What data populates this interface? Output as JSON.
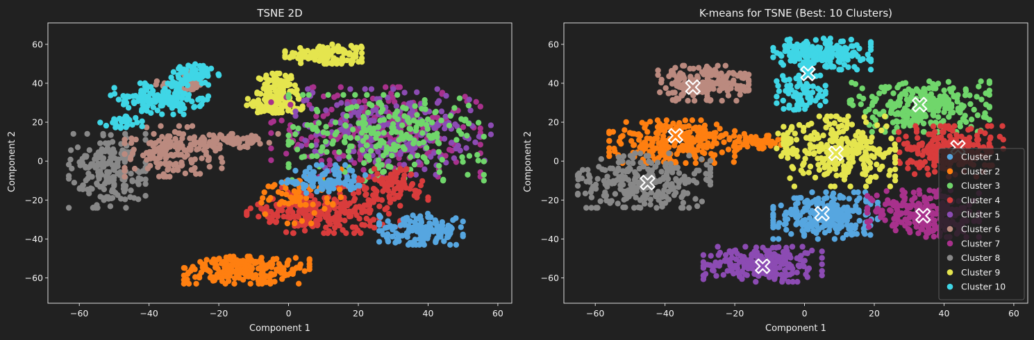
{
  "palette": {
    "figure_bg": "#212121",
    "axes_face": "#212121",
    "spine": "#f2f2f2",
    "text": "#f2f2f2",
    "marker_edge": "#ffffff"
  },
  "chart_data": [
    {
      "type": "scatter",
      "title": "TSNE 2D",
      "xlabel": "Component 1",
      "ylabel": "Component 2",
      "xlim": [
        -69,
        64
      ],
      "ylim": [
        -73,
        71
      ],
      "xticks": [
        -60,
        -40,
        -20,
        0,
        20,
        40,
        60
      ],
      "yticks": [
        -60,
        -40,
        -20,
        0,
        20,
        40,
        60
      ],
      "grid": false,
      "legend": null,
      "series": [
        {
          "color": "#e5e54e",
          "regions": [
            {
              "type": "ellipse",
              "cx": 10,
              "cy": 55,
              "rx": 11,
              "ry": 5,
              "n": 140
            },
            {
              "type": "ellipse",
              "cx": -3,
              "cy": 35,
              "rx": 6,
              "ry": 10,
              "n": 110
            },
            {
              "type": "ellipse",
              "cx": -4,
              "cy": 28,
              "rx": 8,
              "ry": 4,
              "n": 60
            }
          ]
        },
        {
          "color": "#a8318c",
          "regions": [
            {
              "type": "ellipse",
              "cx": 25,
              "cy": 15,
              "rx": 30,
              "ry": 23,
              "n": 260
            }
          ]
        },
        {
          "color": "#8c4bb3",
          "regions": [
            {
              "type": "ellipse",
              "cx": 30,
              "cy": 15,
              "rx": 28,
              "ry": 22,
              "n": 220
            }
          ]
        },
        {
          "color": "#70d66b",
          "regions": [
            {
              "type": "ellipse",
              "cx": 28,
              "cy": 12,
              "rx": 28,
              "ry": 22,
              "n": 240
            }
          ]
        },
        {
          "color": "#d93c3c",
          "regions": [
            {
              "type": "ellipse",
              "cx": 10,
              "cy": -25,
              "rx": 22,
              "ry": 12,
              "n": 260
            },
            {
              "type": "ellipse",
              "cx": 30,
              "cy": -12,
              "rx": 10,
              "ry": 8,
              "n": 80
            }
          ]
        },
        {
          "color": "#ff7f10",
          "regions": [
            {
              "type": "ellipse",
              "cx": -12,
              "cy": -56,
              "rx": 18,
              "ry": 7,
              "n": 240
            },
            {
              "type": "ellipse",
              "cx": 3,
              "cy": -18,
              "rx": 12,
              "ry": 14,
              "n": 60
            }
          ]
        },
        {
          "color": "#56a6e0",
          "regions": [
            {
              "type": "ellipse",
              "cx": 38,
              "cy": -35,
              "rx": 12,
              "ry": 8,
              "n": 150
            },
            {
              "type": "ellipse",
              "cx": 10,
              "cy": -10,
              "rx": 12,
              "ry": 8,
              "n": 90
            }
          ]
        },
        {
          "color": "#888888",
          "regions": [
            {
              "type": "ellipse",
              "cx": -52,
              "cy": -5,
              "rx": 11,
              "ry": 19,
              "n": 200
            }
          ]
        },
        {
          "color": "#bb8a7f",
          "regions": [
            {
              "type": "ellipse",
              "cx": -33,
              "cy": 5,
              "rx": 14,
              "ry": 13,
              "n": 160
            },
            {
              "type": "ellipse",
              "cx": -15,
              "cy": 10,
              "rx": 12,
              "ry": 4,
              "n": 70
            },
            {
              "type": "ellipse",
              "cx": -30,
              "cy": 40,
              "rx": 8,
              "ry": 6,
              "n": 40
            }
          ]
        },
        {
          "color": "#3fd6e6",
          "regions": [
            {
              "type": "ellipse",
              "cx": -37,
              "cy": 32,
              "rx": 14,
              "ry": 8,
              "n": 140
            },
            {
              "type": "ellipse",
              "cx": -27,
              "cy": 45,
              "rx": 7,
              "ry": 5,
              "n": 60
            },
            {
              "type": "ellipse",
              "cx": -48,
              "cy": 20,
              "rx": 6,
              "ry": 3,
              "n": 30
            }
          ]
        }
      ]
    },
    {
      "type": "scatter",
      "title": "K-means for TSNE (Best: 10 Clusters)",
      "xlabel": "Component 1",
      "ylabel": "Component 2",
      "xlim": [
        -69,
        64
      ],
      "ylim": [
        -73,
        71
      ],
      "xticks": [
        -60,
        -40,
        -20,
        0,
        20,
        40,
        60
      ],
      "yticks": [
        -60,
        -40,
        -20,
        0,
        20,
        40,
        60
      ],
      "grid": false,
      "legend": "lower-right",
      "series": [
        {
          "name": "Cluster 1",
          "color": "#56a6e0",
          "centroid": [
            5,
            -27
          ],
          "regions": [
            {
              "type": "ellipse",
              "cx": 6,
              "cy": -28,
              "rx": 15,
              "ry": 12,
              "n": 260
            }
          ]
        },
        {
          "name": "Cluster 2",
          "color": "#ff7f10",
          "centroid": [
            -37,
            13
          ],
          "regions": [
            {
              "type": "ellipse",
              "cx": -38,
              "cy": 10,
              "rx": 18,
              "ry": 11,
              "n": 230
            },
            {
              "type": "ellipse",
              "cx": -16,
              "cy": 10,
              "rx": 10,
              "ry": 4,
              "n": 60
            }
          ]
        },
        {
          "name": "Cluster 3",
          "color": "#70d66b",
          "centroid": [
            33,
            29
          ],
          "regions": [
            {
              "type": "ellipse",
              "cx": 33,
              "cy": 28,
              "rx": 20,
              "ry": 13,
              "n": 260
            }
          ]
        },
        {
          "name": "Cluster 4",
          "color": "#d93c3c",
          "centroid": [
            44,
            7
          ],
          "regions": [
            {
              "type": "ellipse",
              "cx": 42,
              "cy": 5,
              "rx": 15,
              "ry": 13,
              "n": 220
            }
          ]
        },
        {
          "name": "Cluster 5",
          "color": "#8c4bb3",
          "centroid": [
            -12,
            -54
          ],
          "regions": [
            {
              "type": "ellipse",
              "cx": -12,
              "cy": -53,
              "rx": 17,
              "ry": 9,
              "n": 230
            }
          ]
        },
        {
          "name": "Cluster 6",
          "color": "#bb8a7f",
          "centroid": [
            -32,
            38
          ],
          "regions": [
            {
              "type": "ellipse",
              "cx": -29,
              "cy": 40,
              "rx": 13,
              "ry": 9,
              "n": 200
            }
          ]
        },
        {
          "name": "Cluster 7",
          "color": "#a8318c",
          "centroid": [
            34,
            -28
          ],
          "regions": [
            {
              "type": "ellipse",
              "cx": 34,
              "cy": -27,
              "rx": 16,
              "ry": 12,
              "n": 230
            }
          ]
        },
        {
          "name": "Cluster 8",
          "color": "#888888",
          "centroid": [
            -45,
            -11
          ],
          "regions": [
            {
              "type": "ellipse",
              "cx": -46,
              "cy": -10,
              "rx": 19,
              "ry": 14,
              "n": 260
            }
          ]
        },
        {
          "name": "Cluster 9",
          "color": "#e5e54e",
          "centroid": [
            9,
            4
          ],
          "regions": [
            {
              "type": "ellipse",
              "cx": 10,
              "cy": 5,
              "rx": 16,
              "ry": 18,
              "n": 270
            },
            {
              "type": "ellipse",
              "cx": -5,
              "cy": 8,
              "rx": 3,
              "ry": 10,
              "n": 25
            }
          ]
        },
        {
          "name": "Cluster 10",
          "color": "#3fd6e6",
          "centroid": [
            1,
            45
          ],
          "regions": [
            {
              "type": "ellipse",
              "cx": 5,
              "cy": 55,
              "rx": 14,
              "ry": 8,
              "n": 180
            },
            {
              "type": "ellipse",
              "cx": -1,
              "cy": 35,
              "rx": 7,
              "ry": 9,
              "n": 80
            }
          ]
        }
      ]
    }
  ]
}
